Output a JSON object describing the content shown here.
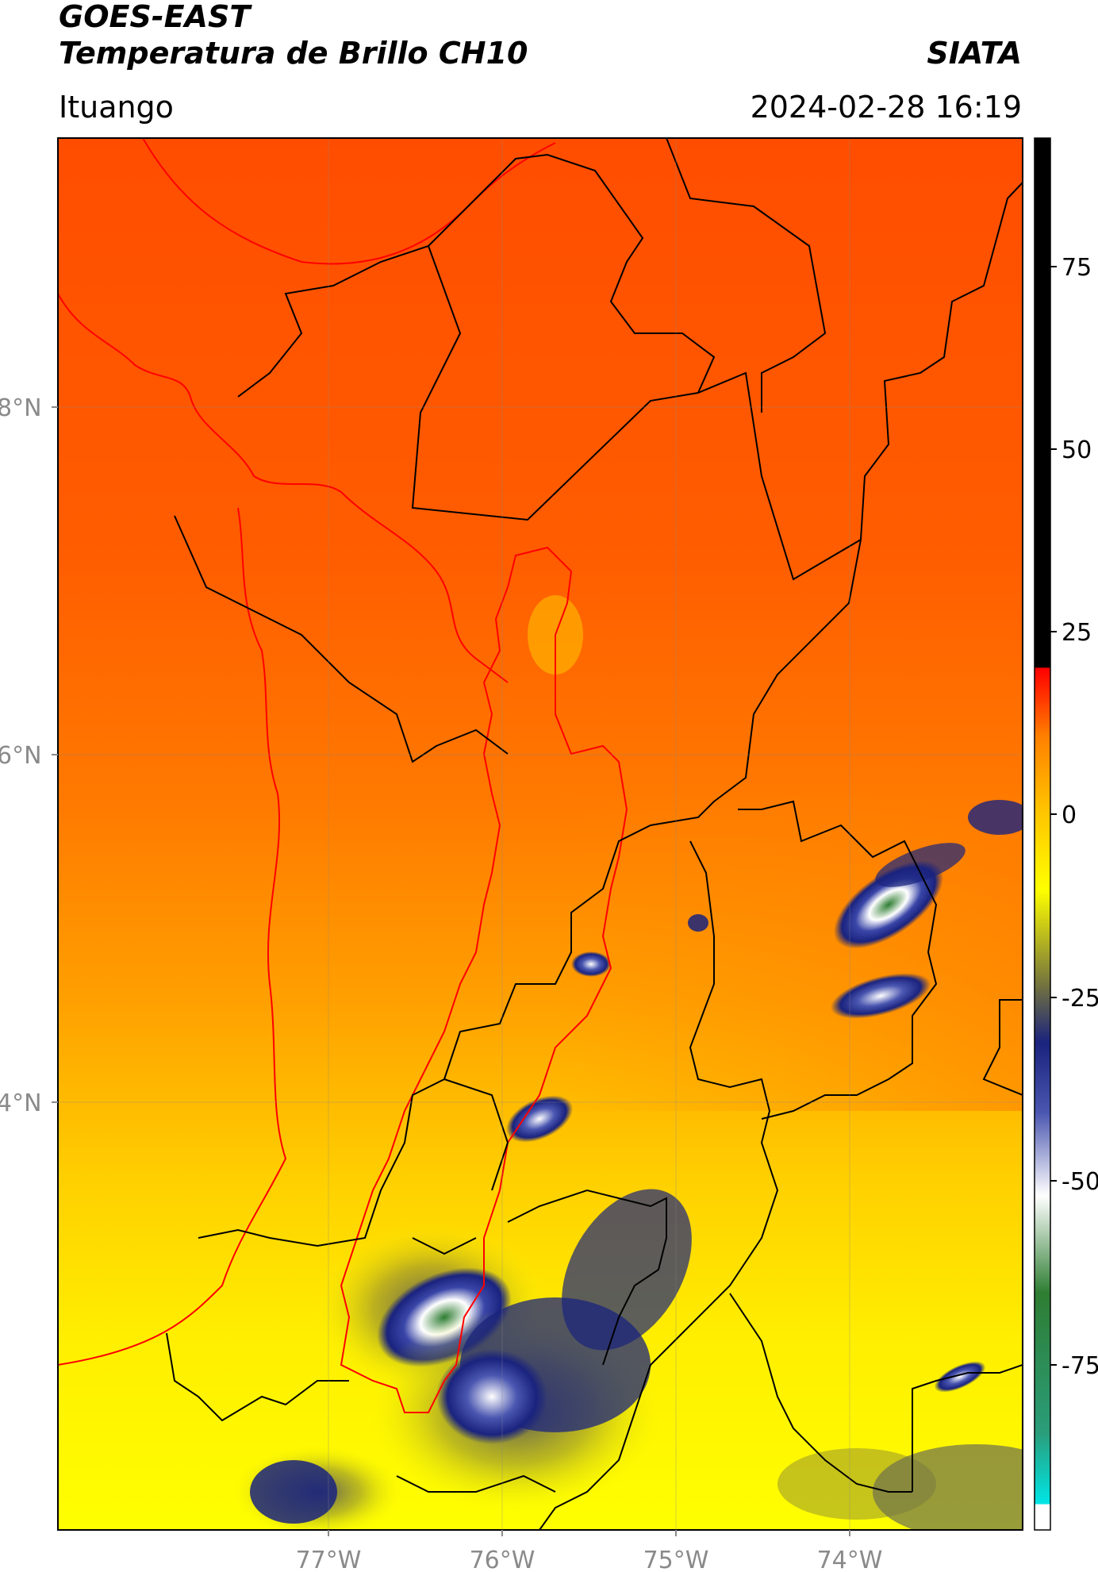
{
  "header": {
    "satellite": "GOES-EAST",
    "product": "Temperatura de Brillo CH10",
    "brand": "SIATA",
    "region": "Ituango",
    "datetime": "2024-02-28 16:19"
  },
  "map": {
    "lat_labels": [
      "8°N",
      "6°N",
      "4°N"
    ],
    "lon_labels": [
      "77°W",
      "76°W",
      "75°W",
      "74°W"
    ],
    "colorbar": {
      "ticks": [
        "75",
        "50",
        "25",
        "0",
        "-25",
        "-50",
        "-75"
      ],
      "colors": {
        "warm": "#ff5a00",
        "mid": "#ffb300",
        "cold": "#ffff00",
        "cloud": "#1a237e",
        "core": "#2e7d32",
        "black": "#000000",
        "red": "#ff0000",
        "cyan": "#00e5e5"
      }
    }
  }
}
